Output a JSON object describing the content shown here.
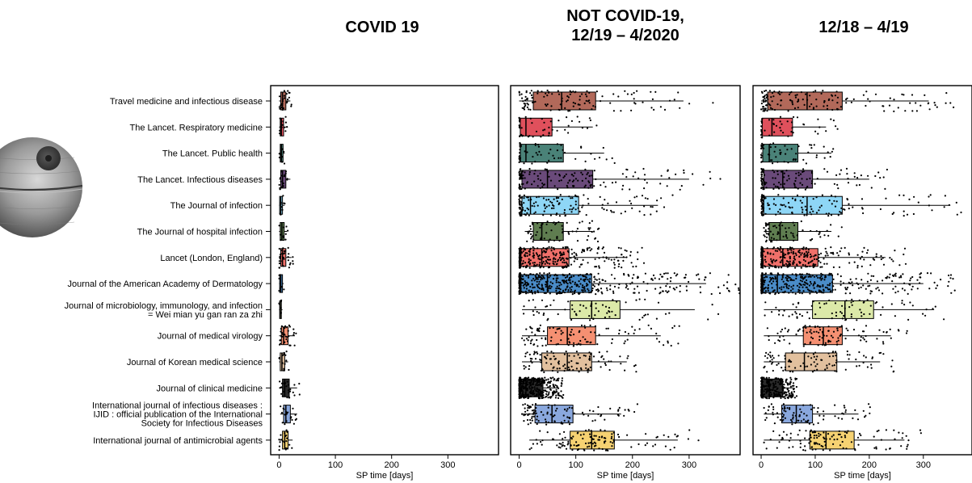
{
  "chart_data": {
    "type": "box",
    "xlabel": "SP time [days]",
    "xlim": [
      -15,
      390
    ],
    "xticks": [
      0,
      100,
      200,
      300
    ],
    "categories": [
      "Travel medicine and infectious disease",
      "The Lancet. Respiratory medicine",
      "The Lancet. Public health",
      "The Lancet. Infectious diseases",
      "The Journal of infection",
      "The Journal of hospital infection",
      "Lancet (London, England)",
      "Journal of the American Academy of Dermatology",
      [
        "Journal of microbiology, immunology, and infection",
        "= Wei mian yu gan ran za zhi"
      ],
      "Journal of medical virology",
      "Journal of Korean medical science",
      "Journal of clinical medicine",
      [
        "International journal of infectious diseases :",
        "IJID : official publication of the International",
        "Society for Infectious Diseases"
      ],
      "International journal of antimicrobial agents"
    ],
    "colors": [
      "#b2695a",
      "#e0505c",
      "#4a8278",
      "#6a4a7a",
      "#8ed6f6",
      "#5f7d50",
      "#f0706a",
      "#4a8cc8",
      "#dce9a8",
      "#f59072",
      "#e2c09e",
      "#2a2a2a",
      "#8aa8de",
      "#f6d272"
    ],
    "panels": [
      {
        "title": [
          "COVID 19"
        ],
        "boxes": [
          {
            "q1": 3,
            "median": 6,
            "q3": 12,
            "wlo": 0,
            "whi": 20,
            "n": 25
          },
          {
            "q1": 2,
            "median": 4,
            "q3": 8,
            "wlo": 0,
            "whi": 14,
            "n": 12
          },
          {
            "q1": 2,
            "median": 4,
            "q3": 7,
            "wlo": 0,
            "whi": 10,
            "n": 8
          },
          {
            "q1": 3,
            "median": 6,
            "q3": 12,
            "wlo": 0,
            "whi": 20,
            "n": 20
          },
          {
            "q1": 1,
            "median": 3,
            "q3": 6,
            "wlo": 0,
            "whi": 10,
            "n": 10
          },
          {
            "q1": 2,
            "median": 5,
            "q3": 9,
            "wlo": 0,
            "whi": 14,
            "n": 10
          },
          {
            "q1": 3,
            "median": 6,
            "q3": 12,
            "wlo": 0,
            "whi": 22,
            "n": 30
          },
          {
            "q1": 1,
            "median": 3,
            "q3": 6,
            "wlo": 0,
            "whi": 8,
            "n": 8
          },
          {
            "q1": 1,
            "median": 2,
            "q3": 4,
            "wlo": 0,
            "whi": 6,
            "n": 6
          },
          {
            "q1": 4,
            "median": 8,
            "q3": 16,
            "wlo": 0,
            "whi": 28,
            "n": 35
          },
          {
            "q1": 2,
            "median": 5,
            "q3": 10,
            "wlo": 0,
            "whi": 16,
            "n": 15
          },
          {
            "q1": 6,
            "median": 10,
            "q3": 18,
            "wlo": 0,
            "whi": 32,
            "n": 25
          },
          {
            "q1": 8,
            "median": 12,
            "q3": 20,
            "wlo": 2,
            "whi": 32,
            "n": 20
          },
          {
            "q1": 6,
            "median": 10,
            "q3": 16,
            "wlo": 0,
            "whi": 24,
            "n": 20
          }
        ]
      },
      {
        "title": [
          "NOT COVID-19,",
          "12/19 – 4/2020"
        ],
        "boxes": [
          {
            "q1": 25,
            "median": 75,
            "q3": 135,
            "wlo": 0,
            "whi": 290,
            "n": 120
          },
          {
            "q1": 2,
            "median": 12,
            "q3": 58,
            "wlo": 0,
            "whi": 130,
            "n": 50
          },
          {
            "q1": 2,
            "median": 12,
            "q3": 78,
            "wlo": 0,
            "whi": 150,
            "n": 60
          },
          {
            "q1": 5,
            "median": 50,
            "q3": 130,
            "wlo": 0,
            "whi": 300,
            "n": 150
          },
          {
            "q1": 5,
            "median": 20,
            "q3": 105,
            "wlo": 0,
            "whi": 245,
            "n": 150
          },
          {
            "q1": 25,
            "median": 40,
            "q3": 78,
            "wlo": 10,
            "whi": 130,
            "n": 70
          },
          {
            "q1": 3,
            "median": 40,
            "q3": 88,
            "wlo": 0,
            "whi": 190,
            "n": 300
          },
          {
            "q1": 3,
            "median": 50,
            "q3": 128,
            "wlo": 0,
            "whi": 330,
            "n": 500
          },
          {
            "q1": 90,
            "median": 128,
            "q3": 178,
            "wlo": 5,
            "whi": 310,
            "n": 70
          },
          {
            "q1": 50,
            "median": 85,
            "q3": 135,
            "wlo": 5,
            "whi": 250,
            "n": 110
          },
          {
            "q1": 40,
            "median": 85,
            "q3": 128,
            "wlo": 5,
            "whi": 190,
            "n": 110
          },
          {
            "q1": 2,
            "median": 12,
            "q3": 42,
            "wlo": 0,
            "whi": 70,
            "n": 400
          },
          {
            "q1": 28,
            "median": 58,
            "q3": 95,
            "wlo": 5,
            "whi": 180,
            "n": 100
          },
          {
            "q1": 90,
            "median": 128,
            "q3": 168,
            "wlo": 18,
            "whi": 280,
            "n": 120
          }
        ]
      },
      {
        "title": [
          "12/18 – 4/19"
        ],
        "boxes": [
          {
            "q1": 12,
            "median": 85,
            "q3": 150,
            "wlo": 0,
            "whi": 310,
            "n": 150
          },
          {
            "q1": 2,
            "median": 20,
            "q3": 58,
            "wlo": 0,
            "whi": 120,
            "n": 50
          },
          {
            "q1": 3,
            "median": 15,
            "q3": 68,
            "wlo": 0,
            "whi": 130,
            "n": 60
          },
          {
            "q1": 5,
            "median": 40,
            "q3": 95,
            "wlo": 0,
            "whi": 200,
            "n": 120
          },
          {
            "q1": 5,
            "median": 85,
            "q3": 150,
            "wlo": 0,
            "whi": 350,
            "n": 150
          },
          {
            "q1": 15,
            "median": 35,
            "q3": 68,
            "wlo": 5,
            "whi": 130,
            "n": 70
          },
          {
            "q1": 3,
            "median": 40,
            "q3": 105,
            "wlo": 0,
            "whi": 230,
            "n": 300
          },
          {
            "q1": 3,
            "median": 30,
            "q3": 132,
            "wlo": 0,
            "whi": 300,
            "n": 400
          },
          {
            "q1": 95,
            "median": 155,
            "q3": 208,
            "wlo": 5,
            "whi": 320,
            "n": 80
          },
          {
            "q1": 78,
            "median": 115,
            "q3": 150,
            "wlo": 5,
            "whi": 240,
            "n": 110
          },
          {
            "q1": 45,
            "median": 80,
            "q3": 140,
            "wlo": 5,
            "whi": 220,
            "n": 100
          },
          {
            "q1": 2,
            "median": 15,
            "q3": 40,
            "wlo": 0,
            "whi": 60,
            "n": 250
          },
          {
            "q1": 38,
            "median": 65,
            "q3": 95,
            "wlo": 5,
            "whi": 180,
            "n": 90
          },
          {
            "q1": 90,
            "median": 120,
            "q3": 172,
            "wlo": 5,
            "whi": 265,
            "n": 120
          }
        ]
      }
    ]
  }
}
